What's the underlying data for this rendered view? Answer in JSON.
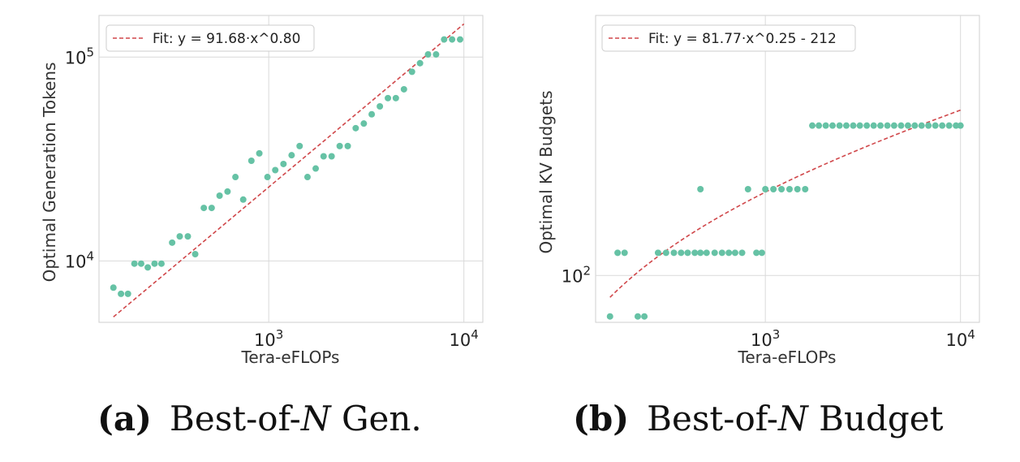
{
  "colors": {
    "point": "#66c2a5",
    "fit": "#d0474a",
    "grid": "#d9d9d9",
    "frame": "#cfcfcf"
  },
  "chart_data": [
    {
      "type": "scatter",
      "panel": "a",
      "xscale": "log",
      "yscale": "log",
      "xlim": [
        135,
        12500
      ],
      "ylim": [
        5000,
        160000
      ],
      "xlabel": "Tera-eFLOPs",
      "ylabel": "Optimal Generation Tokens",
      "xticks": [
        {
          "value": 1000,
          "base": "10",
          "exp": "3"
        },
        {
          "value": 10000,
          "base": "10",
          "exp": "4"
        }
      ],
      "yticks": [
        {
          "value": 10000,
          "base": "10",
          "exp": "4"
        },
        {
          "value": 100000,
          "base": "10",
          "exp": "5"
        }
      ],
      "legend": {
        "label": "Fit: y = 91.68·x^0.80",
        "location": "top-left"
      },
      "fit": {
        "label": "Fit: y = 91.68·x^0.80",
        "a": 91.68,
        "b": 0.8,
        "c": 0,
        "x_range": [
          160,
          10000
        ]
      },
      "points": [
        [
          160,
          7400
        ],
        [
          175,
          6900
        ],
        [
          190,
          6900
        ],
        [
          205,
          9700
        ],
        [
          222,
          9700
        ],
        [
          240,
          9300
        ],
        [
          260,
          9700
        ],
        [
          282,
          9700
        ],
        [
          320,
          12300
        ],
        [
          350,
          13200
        ],
        [
          385,
          13200
        ],
        [
          420,
          10800
        ],
        [
          465,
          18200
        ],
        [
          510,
          18200
        ],
        [
          560,
          20900
        ],
        [
          615,
          21900
        ],
        [
          675,
          25800
        ],
        [
          740,
          20000
        ],
        [
          815,
          31000
        ],
        [
          895,
          33700
        ],
        [
          985,
          25800
        ],
        [
          1080,
          27900
        ],
        [
          1190,
          29900
        ],
        [
          1310,
          33000
        ],
        [
          1440,
          36600
        ],
        [
          1580,
          25800
        ],
        [
          1740,
          28400
        ],
        [
          1910,
          32600
        ],
        [
          2100,
          32600
        ],
        [
          2310,
          36600
        ],
        [
          2540,
          36600
        ],
        [
          2790,
          44800
        ],
        [
          3070,
          47200
        ],
        [
          3370,
          52400
        ],
        [
          3710,
          57300
        ],
        [
          4080,
          62900
        ],
        [
          4480,
          62900
        ],
        [
          4930,
          69500
        ],
        [
          5420,
          84700
        ],
        [
          5960,
          93300
        ],
        [
          6550,
          103000
        ],
        [
          7200,
          103000
        ],
        [
          7920,
          122000
        ],
        [
          8700,
          122000
        ],
        [
          9560,
          122000
        ]
      ]
    },
    {
      "type": "scatter",
      "panel": "b",
      "xscale": "log",
      "yscale": "log",
      "xlim": [
        135,
        12500
      ],
      "ylim": [
        60,
        1700
      ],
      "xlabel": "Tera-eFLOPs",
      "ylabel": "Optimal KV Budgets",
      "xticks": [
        {
          "value": 1000,
          "base": "10",
          "exp": "3"
        },
        {
          "value": 10000,
          "base": "10",
          "exp": "4"
        }
      ],
      "yticks": [
        {
          "value": 100,
          "base": "10",
          "exp": "2"
        }
      ],
      "legend": {
        "label": "Fit: y = 81.77·x^0.25 - 212",
        "location": "top-left"
      },
      "fit": {
        "label": "Fit: y = 81.77·x^0.25 - 212",
        "a": 81.77,
        "b": 0.25,
        "c": -212,
        "x_range": [
          160,
          10000
        ]
      },
      "points": [
        [
          160,
          64
        ],
        [
          175,
          128
        ],
        [
          190,
          128
        ],
        [
          222,
          64
        ],
        [
          240,
          64
        ],
        [
          282,
          128
        ],
        [
          310,
          128
        ],
        [
          340,
          128
        ],
        [
          370,
          128
        ],
        [
          400,
          128
        ],
        [
          435,
          128
        ],
        [
          465,
          128
        ],
        [
          500,
          128
        ],
        [
          550,
          128
        ],
        [
          600,
          128
        ],
        [
          650,
          128
        ],
        [
          700,
          128
        ],
        [
          760,
          128
        ],
        [
          900,
          128
        ],
        [
          960,
          128
        ],
        [
          465,
          256
        ],
        [
          815,
          256
        ],
        [
          1000,
          256
        ],
        [
          1100,
          256
        ],
        [
          1210,
          256
        ],
        [
          1330,
          256
        ],
        [
          1460,
          256
        ],
        [
          1600,
          256
        ],
        [
          1740,
          512
        ],
        [
          1880,
          512
        ],
        [
          2040,
          512
        ],
        [
          2210,
          512
        ],
        [
          2400,
          512
        ],
        [
          2600,
          512
        ],
        [
          2820,
          512
        ],
        [
          3050,
          512
        ],
        [
          3310,
          512
        ],
        [
          3590,
          512
        ],
        [
          3890,
          512
        ],
        [
          4220,
          512
        ],
        [
          4570,
          512
        ],
        [
          4960,
          512
        ],
        [
          5380,
          512
        ],
        [
          5830,
          512
        ],
        [
          6320,
          512
        ],
        [
          6850,
          512
        ],
        [
          7430,
          512
        ],
        [
          8060,
          512
        ],
        [
          8740,
          512
        ],
        [
          9480,
          512
        ],
        [
          10000,
          512
        ]
      ]
    }
  ],
  "captions": [
    {
      "label": "(a)",
      "text_pre": "Best-of-",
      "text_var": "N",
      "text_post": " Gen."
    },
    {
      "label": "(b)",
      "text_pre": "Best-of-",
      "text_var": "N",
      "text_post": " Budget"
    }
  ]
}
